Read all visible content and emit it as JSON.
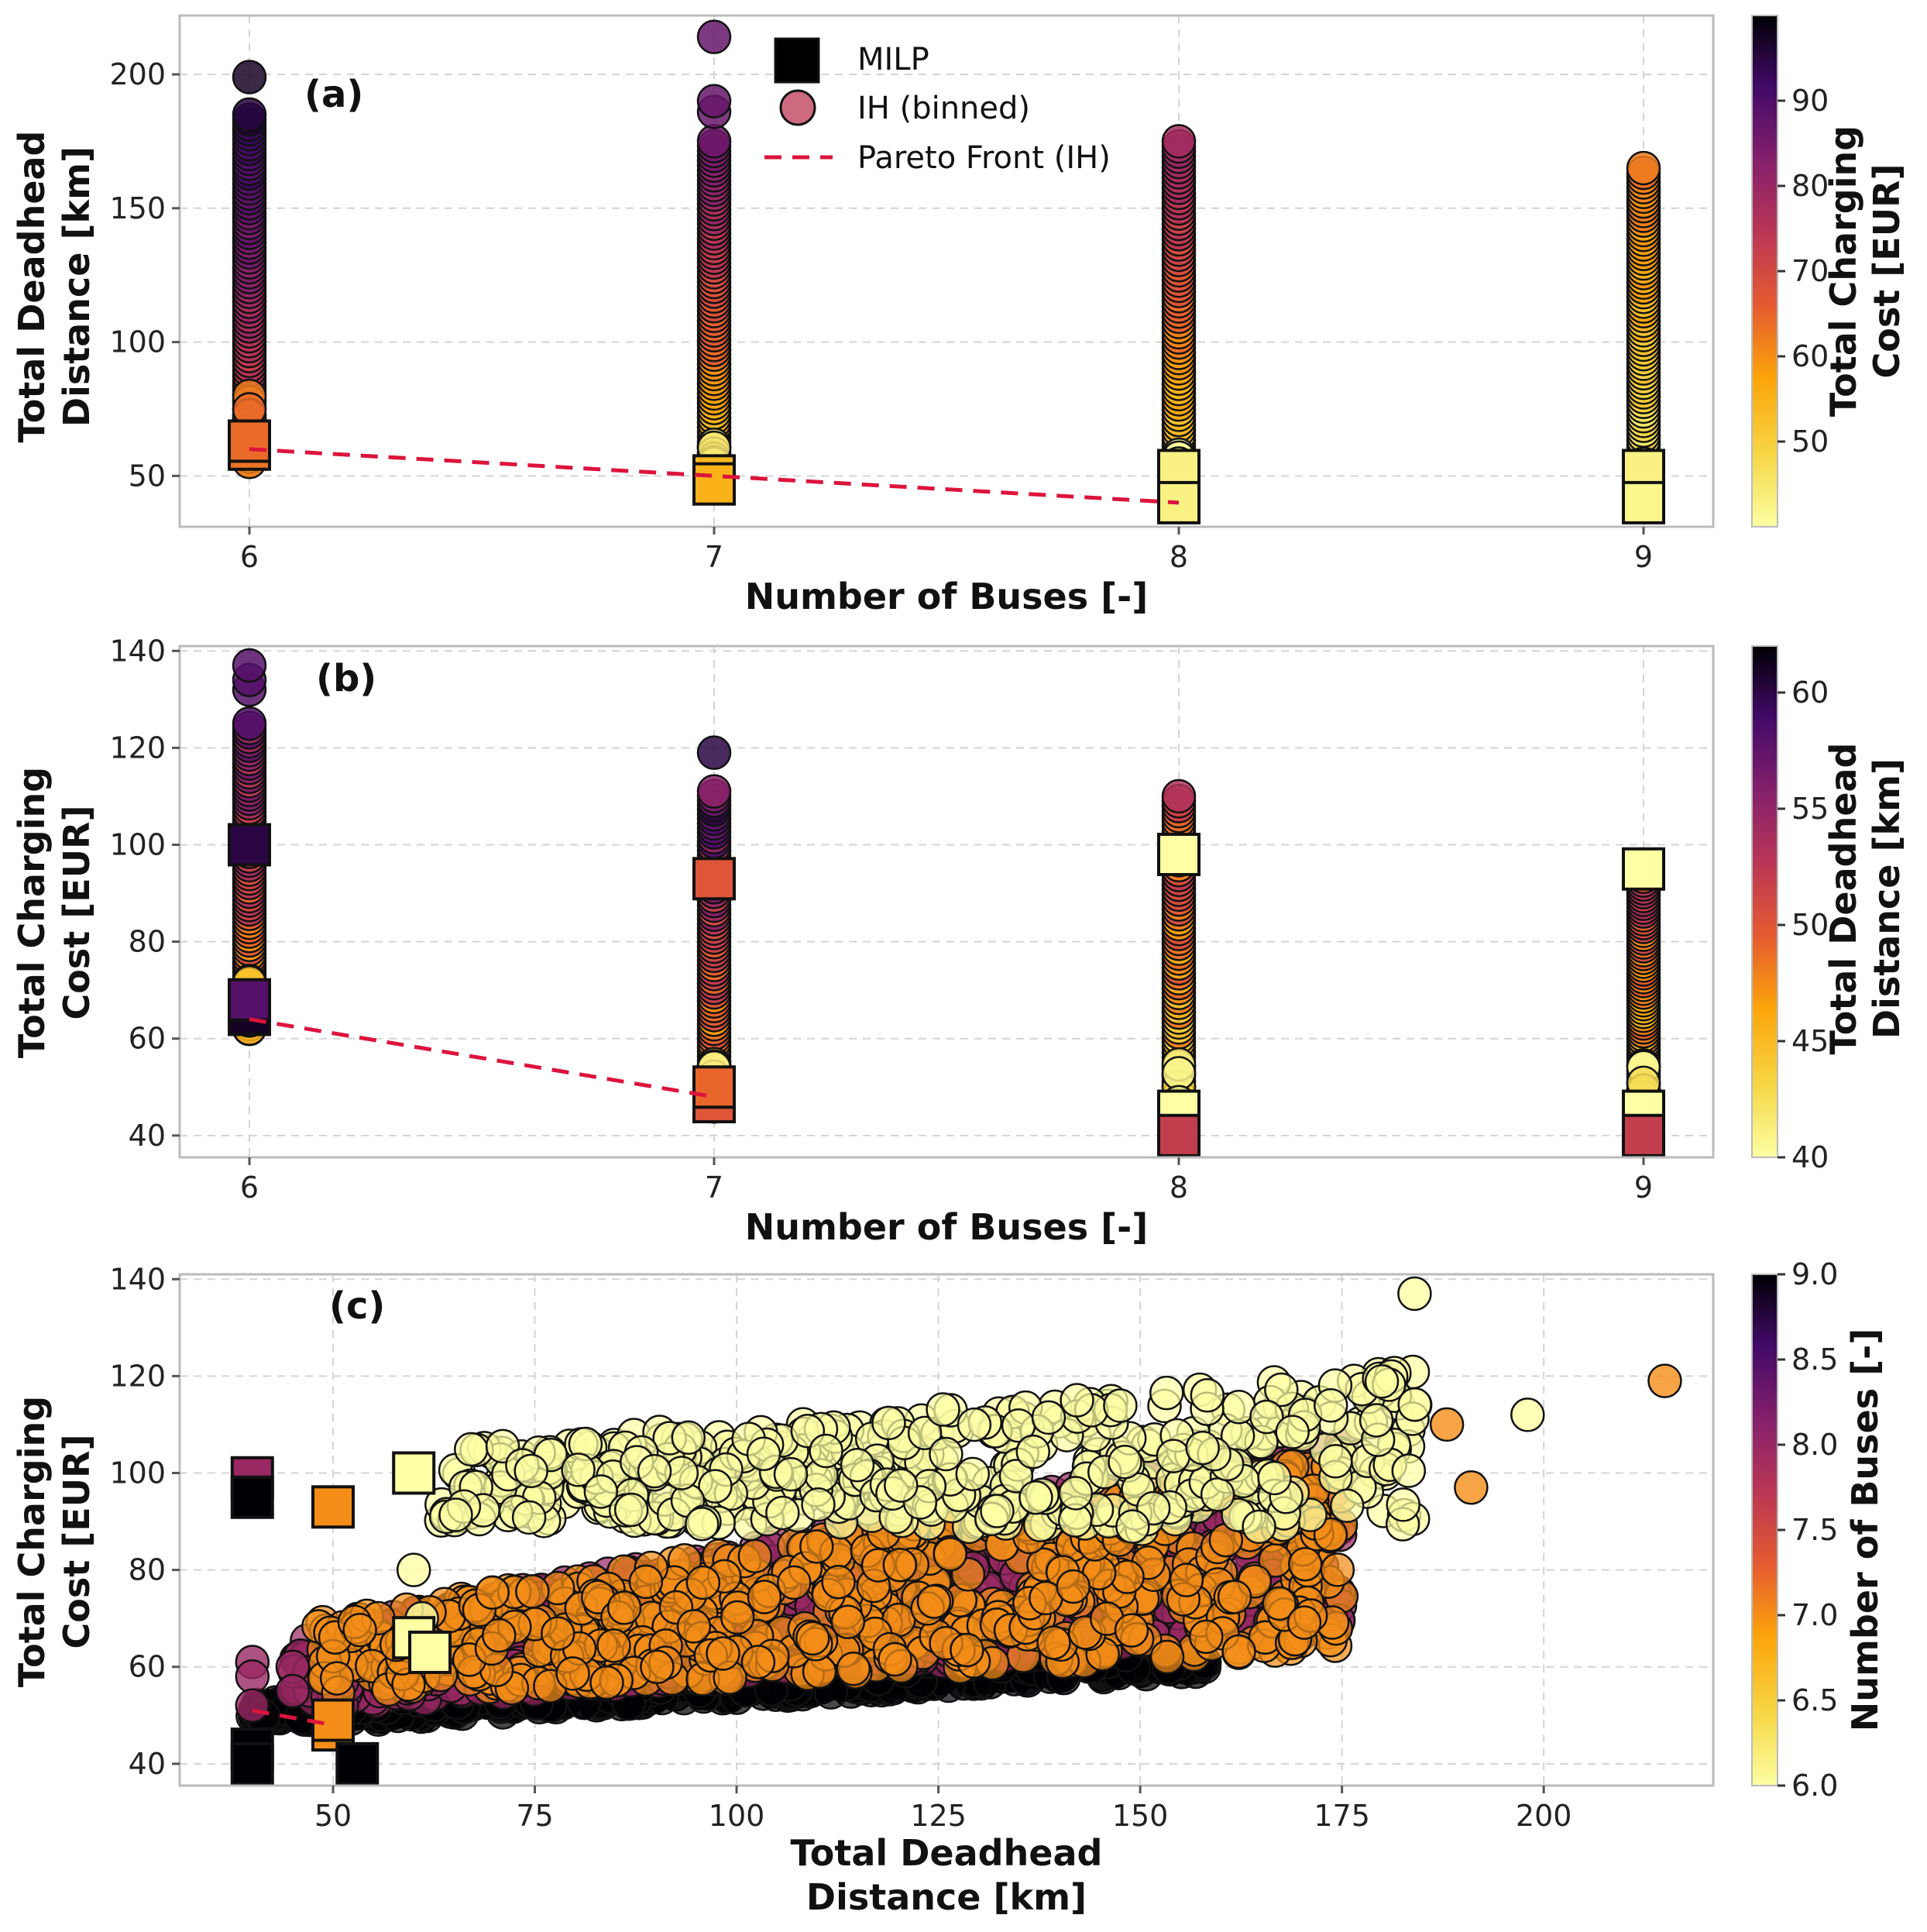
{
  "colors": {
    "pareto": "#dc143c",
    "grid": "#d4d4d4",
    "edge": "#111111"
  },
  "legend": {
    "milp": "MILP",
    "ih": "IH (binned)",
    "pareto": "Pareto Front (IH)"
  },
  "chart_data": [
    {
      "id": "a",
      "type": "scatter",
      "panel_label": "(a)",
      "xlabel": "Number of Buses [-]",
      "ylabel": [
        "Total Deadhead",
        "Distance [km]"
      ],
      "xticks": [
        6,
        7,
        8,
        9
      ],
      "yticks": [
        50,
        100,
        150,
        200
      ],
      "xlim": [
        5.85,
        9.15
      ],
      "ylim": [
        31,
        222
      ],
      "colorbar": {
        "label": [
          "Total Charging",
          "Cost [EUR]"
        ],
        "range": [
          40,
          100
        ],
        "ticks": [
          50,
          60,
          70,
          80,
          90
        ]
      },
      "ih_columns": [
        {
          "x": 6,
          "ymin": 58,
          "ymax": 185,
          "outliers": [
            199
          ],
          "dense_min": 55,
          "dense_max": 80,
          "c_bottom": 62,
          "c_top": 95
        },
        {
          "x": 7,
          "ymin": 50,
          "ymax": 175,
          "outliers": [
            186,
            190,
            214
          ],
          "dense_min": 45,
          "dense_max": 62,
          "c_bottom": 44,
          "c_top": 85
        },
        {
          "x": 8,
          "ymin": 42,
          "ymax": 175,
          "outliers": [],
          "dense_min": 42,
          "dense_max": 58,
          "c_bottom": 41,
          "c_top": 80
        },
        {
          "x": 9,
          "ymin": 42,
          "ymax": 165,
          "outliers": [],
          "dense_min": 42,
          "dense_max": 55,
          "c_bottom": 41,
          "c_top": 62
        }
      ],
      "milp": [
        {
          "x": 6,
          "y": 60,
          "c": 63
        },
        {
          "x": 6,
          "y": 63,
          "c": 64
        },
        {
          "x": 7,
          "y": 50,
          "c": 54
        },
        {
          "x": 7,
          "y": 47,
          "c": 55
        },
        {
          "x": 8,
          "y": 52,
          "c": 43
        },
        {
          "x": 8,
          "y": 40,
          "c": 43
        },
        {
          "x": 9,
          "y": 52,
          "c": 43
        },
        {
          "x": 9,
          "y": 40,
          "c": 42
        }
      ],
      "pareto": {
        "x": [
          6,
          7,
          8
        ],
        "y": [
          60,
          50,
          40
        ]
      }
    },
    {
      "id": "b",
      "type": "scatter",
      "panel_label": "(b)",
      "xlabel": "Number of Buses [-]",
      "ylabel": [
        "Total Charging",
        "Cost [EUR]"
      ],
      "xticks": [
        6,
        7,
        8,
        9
      ],
      "yticks": [
        40,
        60,
        80,
        100,
        120,
        140
      ],
      "xlim": [
        5.85,
        9.15
      ],
      "ylim": [
        35.5,
        141
      ],
      "colorbar": {
        "label": [
          "Total Deadhead",
          "Distance [km]"
        ],
        "range": [
          40,
          62
        ],
        "ticks": [
          40,
          45,
          50,
          55,
          60
        ]
      },
      "ih_columns": [
        {
          "x": 6,
          "ymin": 62,
          "ymax": 125,
          "outliers": [
            132,
            134,
            137
          ],
          "dense_min": 62,
          "dense_max": 72,
          "c_bottom": 46,
          "c_top": 56
        },
        {
          "x": 7,
          "ymin": 46,
          "ymax": 111,
          "outliers": [
            119
          ],
          "dense_min": 46,
          "dense_max": 55,
          "c_bottom": 43,
          "c_top": 58
        },
        {
          "x": 8,
          "ymin": 40,
          "ymax": 110,
          "outliers": [],
          "dense_min": 40,
          "dense_max": 55,
          "c_bottom": 42,
          "c_top": 52
        },
        {
          "x": 9,
          "ymin": 40,
          "ymax": 95,
          "outliers": [],
          "dense_min": 40,
          "dense_max": 55,
          "c_bottom": 42,
          "c_top": 52
        }
      ],
      "milp": [
        {
          "x": 6,
          "y": 100,
          "c": 60
        },
        {
          "x": 6,
          "y": 65,
          "c": 61
        },
        {
          "x": 6,
          "y": 68,
          "c": 58
        },
        {
          "x": 7,
          "y": 93,
          "c": 50
        },
        {
          "x": 7,
          "y": 47,
          "c": 50
        },
        {
          "x": 7,
          "y": 50,
          "c": 49
        },
        {
          "x": 8,
          "y": 98,
          "c": 40
        },
        {
          "x": 8,
          "y": 45,
          "c": 40
        },
        {
          "x": 8,
          "y": 40,
          "c": 52
        },
        {
          "x": 9,
          "y": 95,
          "c": 40
        },
        {
          "x": 9,
          "y": 45,
          "c": 40
        },
        {
          "x": 9,
          "y": 40,
          "c": 52
        }
      ],
      "pareto": {
        "x": [
          6,
          7
        ],
        "y": [
          64,
          48
        ]
      }
    },
    {
      "id": "c",
      "type": "scatter",
      "panel_label": "(c)",
      "xlabel": [
        "Total Deadhead",
        "Distance [km]"
      ],
      "ylabel": [
        "Total Charging",
        "Cost [EUR]"
      ],
      "xticks": [
        50,
        75,
        100,
        125,
        150,
        175,
        200
      ],
      "yticks": [
        40,
        60,
        80,
        100,
        120,
        140
      ],
      "xlim": [
        31,
        221
      ],
      "ylim": [
        35.5,
        141
      ],
      "colorbar": {
        "label": [
          "Number of Buses [-]"
        ],
        "range": [
          6,
          9
        ],
        "ticks": [
          6.0,
          6.5,
          7.0,
          7.5,
          8.0,
          8.5,
          9.0
        ]
      },
      "clouds": [
        {
          "buses": 9,
          "x0": 40,
          "x1": 158,
          "y0": 49,
          "ybase": 50,
          "yslope": 0.13,
          "spread": 6,
          "n": 900
        },
        {
          "buses": 8,
          "x0": 45,
          "x1": 175,
          "y0": 52,
          "ybase": 58,
          "yslope": 0.22,
          "spread": 18,
          "n": 1000
        },
        {
          "buses": 7,
          "x0": 48,
          "x1": 175,
          "y0": 50,
          "ybase": 60,
          "yslope": 0.18,
          "spread": 18,
          "n": 700
        },
        {
          "buses": 6,
          "x0": 62,
          "x1": 185,
          "y0": 78,
          "ybase": 96,
          "yslope": 0.06,
          "spread": 14,
          "n": 520
        }
      ],
      "extra_points": [
        {
          "x": 198,
          "y": 112,
          "c": 6
        },
        {
          "x": 184,
          "y": 137,
          "c": 6
        },
        {
          "x": 215,
          "y": 119,
          "c": 7
        },
        {
          "x": 191,
          "y": 97,
          "c": 7
        },
        {
          "x": 188,
          "y": 110,
          "c": 7
        },
        {
          "x": 40,
          "y": 61,
          "c": 8
        },
        {
          "x": 40,
          "y": 58,
          "c": 8
        },
        {
          "x": 40,
          "y": 52,
          "c": 8
        },
        {
          "x": 45,
          "y": 60,
          "c": 8
        },
        {
          "x": 45,
          "y": 55,
          "c": 8
        },
        {
          "x": 60,
          "y": 80,
          "c": 6
        },
        {
          "x": 61,
          "y": 70,
          "c": 6
        }
      ],
      "milp": [
        {
          "x": 40,
          "y": 99,
          "c": 8
        },
        {
          "x": 40,
          "y": 95,
          "c": 9
        },
        {
          "x": 50,
          "y": 93,
          "c": 7
        },
        {
          "x": 60,
          "y": 100,
          "c": 6
        },
        {
          "x": 60,
          "y": 66,
          "c": 6
        },
        {
          "x": 62,
          "y": 63,
          "c": 6
        },
        {
          "x": 40,
          "y": 43,
          "c": 9
        },
        {
          "x": 40,
          "y": 40,
          "c": 9
        },
        {
          "x": 50,
          "y": 47,
          "c": 7
        },
        {
          "x": 50,
          "y": 49,
          "c": 7
        },
        {
          "x": 53,
          "y": 40,
          "c": 9
        }
      ],
      "pareto": {
        "x": [
          40,
          50
        ],
        "y": [
          51,
          48
        ]
      }
    }
  ]
}
